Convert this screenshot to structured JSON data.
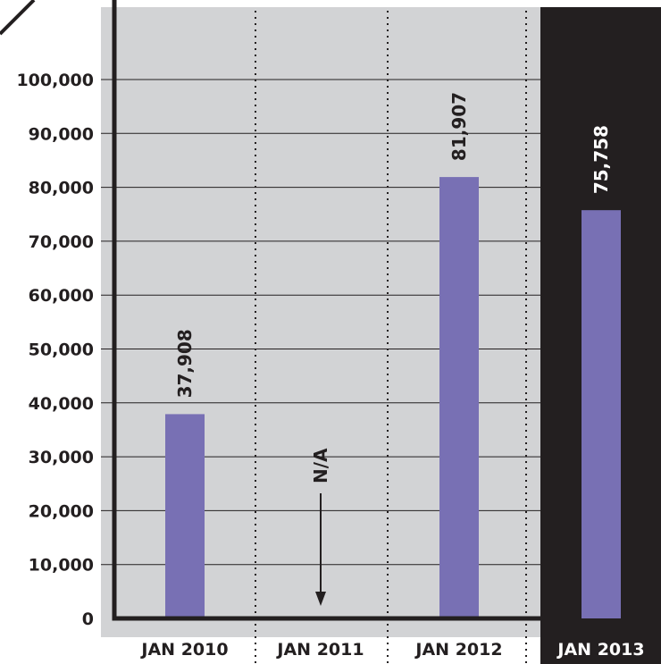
{
  "chart_data": {
    "type": "bar",
    "title": "",
    "xlabel": "",
    "ylabel": "",
    "categories": [
      "JAN 2010",
      "JAN 2011",
      "JAN 2012",
      "JAN 2013"
    ],
    "values": [
      37908,
      null,
      81907,
      75758
    ],
    "data_labels": [
      "37,908",
      "N/A",
      "81,907",
      "75,758"
    ],
    "highlighted_category": "JAN 2013",
    "ylim": [
      0,
      100000
    ],
    "yticks": [
      0,
      10000,
      20000,
      30000,
      40000,
      50000,
      60000,
      70000,
      80000,
      90000,
      100000
    ],
    "ytick_labels": [
      "0",
      "10,000",
      "20,000",
      "30,000",
      "40,000",
      "50,000",
      "60,000",
      "70,000",
      "80,000",
      "90,000",
      "100,000"
    ],
    "grid": true,
    "legend": "none",
    "colors": {
      "bar": "#7870b4",
      "plot_background": "#d2d3d5",
      "highlight_background": "#231f20",
      "axis": "#231f20",
      "text": "#231f20",
      "highlight_text": "#ffffff"
    }
  }
}
